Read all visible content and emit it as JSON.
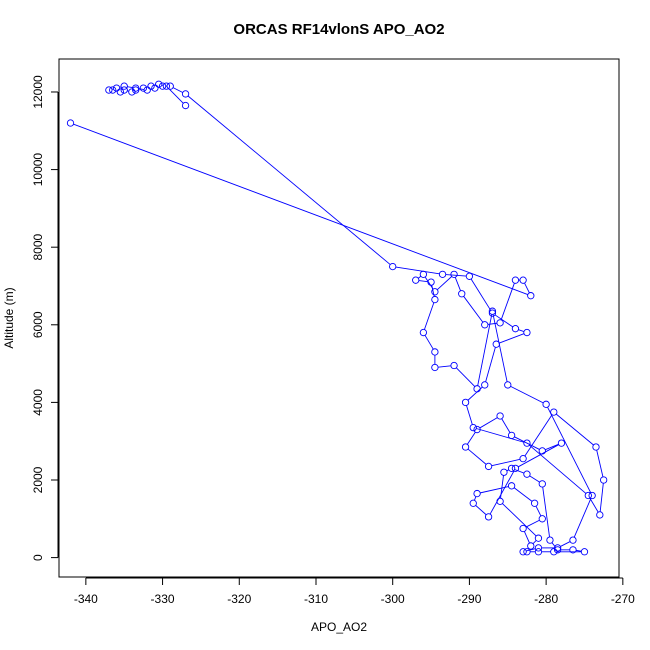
{
  "chart_data": {
    "type": "line",
    "title": "ORCAS RF14vlonS APO_AO2",
    "xlabel": "APO_AO2",
    "ylabel": "Altitude (m)",
    "xlim": [
      -343.5,
      -270.5
    ],
    "ylim": [
      -500,
      12850
    ],
    "xticks": [
      -340,
      -330,
      -320,
      -310,
      -300,
      -290,
      -280,
      -270
    ],
    "yticks": [
      0,
      2000,
      4000,
      6000,
      8000,
      10000,
      12000
    ],
    "grid": false,
    "legend": "none",
    "color": "#0000ff",
    "marker": "open-circle",
    "series": [
      {
        "x": [
          -327.0,
          -329.5,
          -330.5,
          -331.5,
          -332.5,
          -333.5,
          -334.0,
          -335.0,
          -335.5,
          -336.5,
          -337.0,
          -336.0,
          -335.0,
          -333.5,
          -332.0,
          -331.0,
          -330.0,
          -329.0,
          -327.0,
          -300.0,
          -293.5,
          -290.0,
          -287.0,
          -284.0,
          -282.5,
          -286.5,
          -288.0,
          -290.5,
          -289.5,
          -282.5,
          -274.5,
          -273.0,
          -272.5,
          -273.5,
          -279.0,
          -283.0,
          -287.5,
          -290.5,
          -289.0,
          -286.0,
          -284.5,
          -280.5,
          -278.0,
          -284.0,
          -287.5,
          -289.5,
          -289.0,
          -284.5,
          -281.5,
          -280.5,
          -283.0,
          -282.0,
          -281.0,
          -286.0,
          -285.5,
          -284.5,
          -282.5,
          -280.5,
          -279.5,
          -278.5,
          -276.5,
          -275.0,
          -279.0,
          -281.0,
          -282.5,
          -283.0,
          -281.0,
          -278.5,
          -276.5,
          -274.0,
          -280.0,
          -285.0,
          -287.0,
          -289.0,
          -292.0,
          -294.5,
          -294.5,
          -296.0,
          -294.5,
          -295.0,
          -297.0,
          -296.0,
          -294.5,
          -292.0,
          -291.0,
          -288.0,
          -286.0,
          -284.0,
          -283.0,
          -282.0,
          -342.0
        ],
        "y": [
          11650,
          12150,
          12200,
          12150,
          12100,
          12050,
          12000,
          12050,
          12000,
          12050,
          12050,
          12100,
          12150,
          12100,
          12050,
          12100,
          12150,
          12150,
          11950,
          7500,
          7300,
          7250,
          6300,
          5900,
          5800,
          5500,
          4450,
          4000,
          3350,
          2950,
          1600,
          1100,
          2000,
          2850,
          3750,
          2550,
          2350,
          2850,
          3300,
          3650,
          3150,
          2750,
          2950,
          2300,
          1050,
          1400,
          1650,
          1850,
          1400,
          1000,
          750,
          300,
          500,
          1450,
          2200,
          2300,
          2150,
          1900,
          450,
          200,
          200,
          150,
          150,
          150,
          150,
          150,
          250,
          250,
          450,
          1600,
          3950,
          4450,
          6350,
          4350,
          4950,
          4900,
          5300,
          5800,
          6650,
          7100,
          7150,
          7300,
          6850,
          7300,
          6800,
          6000,
          6050,
          7150,
          7150,
          6750,
          11200
        ]
      }
    ]
  }
}
